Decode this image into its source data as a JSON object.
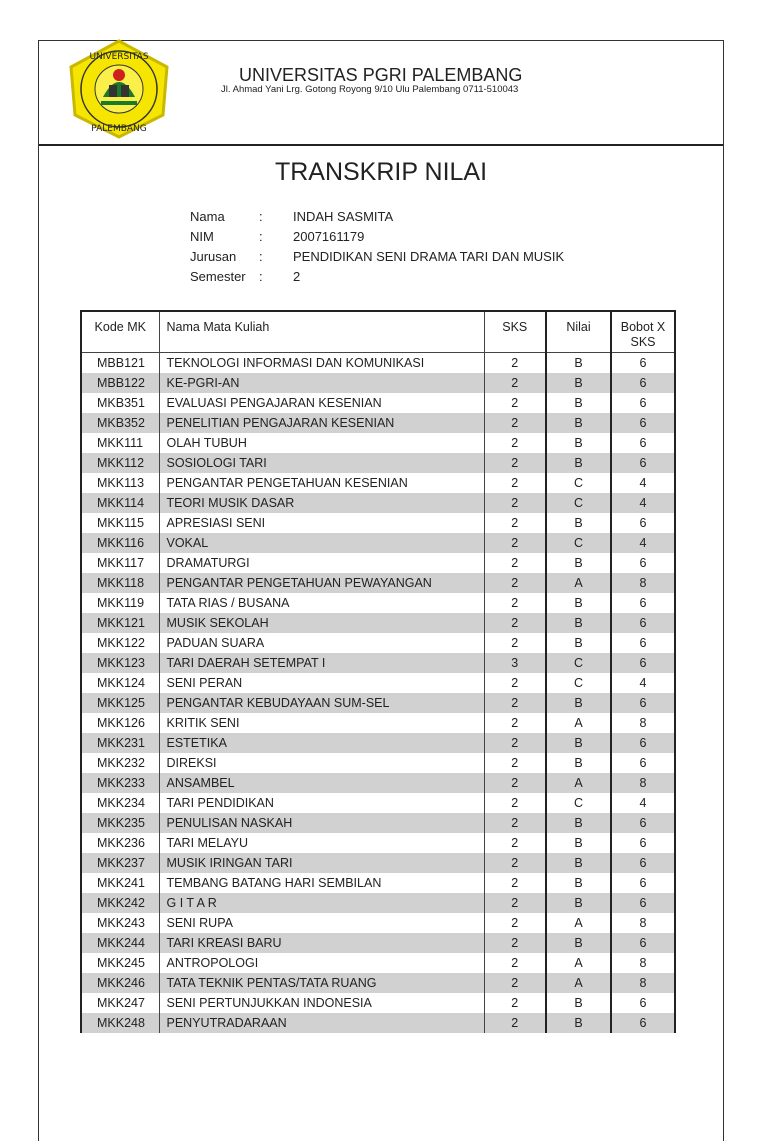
{
  "header": {
    "university": "UNIVERSITAS PGRI PALEMBANG",
    "address": "Jl. Ahmad Yani Lrg. Gotong Royong 9/10 Ulu Palembang 0711-510043",
    "logo_text": "UNIVERSITAS PGRI PALEMBANG"
  },
  "title": "TRANSKRIP NILAI",
  "student": [
    {
      "label": "Nama",
      "value": "INDAH SASMITA"
    },
    {
      "label": "NIM",
      "value": "2007161179"
    },
    {
      "label": "Jurusan",
      "value": "PENDIDIKAN SENI DRAMA TARI DAN MUSIK"
    },
    {
      "label": "Semester",
      "value": "2"
    }
  ],
  "colon": ":",
  "table": {
    "columns": [
      "Kode MK",
      "Nama Mata Kuliah",
      "SKS",
      "Nilai",
      "Bobot X SKS"
    ],
    "rows": [
      [
        "MBB121",
        "TEKNOLOGI INFORMASI DAN KOMUNIKASI",
        "2",
        "B",
        "6"
      ],
      [
        "MBB122",
        "KE-PGRI-AN",
        "2",
        "B",
        "6"
      ],
      [
        "MKB351",
        "EVALUASI PENGAJARAN KESENIAN",
        "2",
        "B",
        "6"
      ],
      [
        "MKB352",
        "PENELITIAN PENGAJARAN KESENIAN",
        "2",
        "B",
        "6"
      ],
      [
        "MKK111",
        "OLAH TUBUH",
        "2",
        "B",
        "6"
      ],
      [
        "MKK112",
        "SOSIOLOGI TARI",
        "2",
        "B",
        "6"
      ],
      [
        "MKK113",
        "PENGANTAR PENGETAHUAN KESENIAN",
        "2",
        "C",
        "4"
      ],
      [
        "MKK114",
        "TEORI MUSIK DASAR",
        "2",
        "C",
        "4"
      ],
      [
        "MKK115",
        "APRESIASI SENI",
        "2",
        "B",
        "6"
      ],
      [
        "MKK116",
        "VOKAL",
        "2",
        "C",
        "4"
      ],
      [
        "MKK117",
        "DRAMATURGI",
        "2",
        "B",
        "6"
      ],
      [
        "MKK118",
        "PENGANTAR PENGETAHUAN PEWAYANGAN",
        "2",
        "A",
        "8"
      ],
      [
        "MKK119",
        "TATA RIAS / BUSANA",
        "2",
        "B",
        "6"
      ],
      [
        "MKK121",
        "MUSIK SEKOLAH",
        "2",
        "B",
        "6"
      ],
      [
        "MKK122",
        "PADUAN SUARA",
        "2",
        "B",
        "6"
      ],
      [
        "MKK123",
        "TARI DAERAH SETEMPAT I",
        "3",
        "C",
        "6"
      ],
      [
        "MKK124",
        "SENI PERAN",
        "2",
        "C",
        "4"
      ],
      [
        "MKK125",
        "PENGANTAR KEBUDAYAAN SUM-SEL",
        "2",
        "B",
        "6"
      ],
      [
        "MKK126",
        "KRITIK SENI",
        "2",
        "A",
        "8"
      ],
      [
        "MKK231",
        "ESTETIKA",
        "2",
        "B",
        "6"
      ],
      [
        "MKK232",
        "DIREKSI",
        "2",
        "B",
        "6"
      ],
      [
        "MKK233",
        "ANSAMBEL",
        "2",
        "A",
        "8"
      ],
      [
        "MKK234",
        "TARI PENDIDIKAN",
        "2",
        "C",
        "4"
      ],
      [
        "MKK235",
        "PENULISAN NASKAH",
        "2",
        "B",
        "6"
      ],
      [
        "MKK236",
        "TARI MELAYU",
        "2",
        "B",
        "6"
      ],
      [
        "MKK237",
        "MUSIK IRINGAN TARI",
        "2",
        "B",
        "6"
      ],
      [
        "MKK241",
        "TEMBANG BATANG HARI SEMBILAN",
        "2",
        "B",
        "6"
      ],
      [
        "MKK242",
        "G I T A R",
        "2",
        "B",
        "6"
      ],
      [
        "MKK243",
        "SENI RUPA",
        "2",
        "A",
        "8"
      ],
      [
        "MKK244",
        "TARI KREASI BARU",
        "2",
        "B",
        "6"
      ],
      [
        "MKK245",
        "ANTROPOLOGI",
        "2",
        "A",
        "8"
      ],
      [
        "MKK246",
        "TATA TEKNIK PENTAS/TATA RUANG",
        "2",
        "A",
        "8"
      ],
      [
        "MKK247",
        "SENI PERTUNJUKKAN INDONESIA",
        "2",
        "B",
        "6"
      ],
      [
        "MKK248",
        "PENYUTRADARAAN",
        "2",
        "B",
        "6"
      ]
    ]
  },
  "colors": {
    "row_alt": "#d1d1d1",
    "logo_yellow": "#f5e500",
    "logo_red": "#d0201c",
    "logo_green": "#1a7a2a"
  }
}
